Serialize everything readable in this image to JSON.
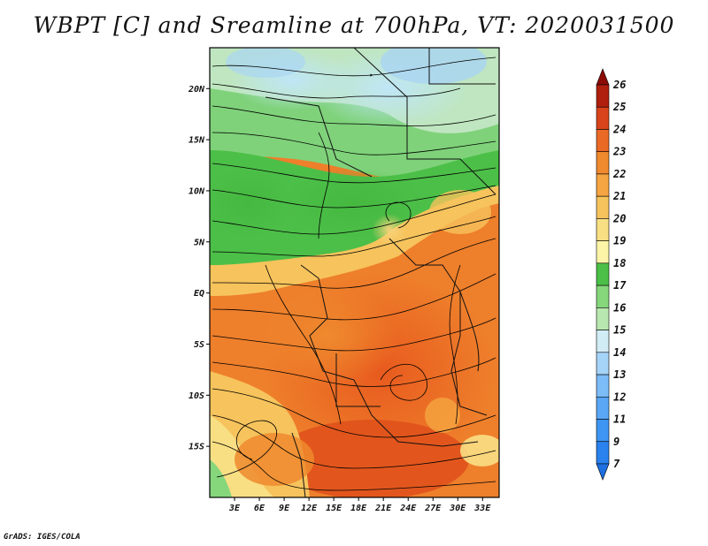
{
  "title": "WBPT [C] and Sreamline at 700hPa, VT: 2020031500",
  "credit": "GrADS: IGES/COLA",
  "lat_labels": [
    "20N",
    "15N",
    "10N",
    "5N",
    "EQ",
    "5S",
    "10S",
    "15S"
  ],
  "lat_values": [
    20,
    15,
    10,
    5,
    0,
    -5,
    -10,
    -15
  ],
  "lon_labels": [
    "3E",
    "6E",
    "9E",
    "12E",
    "15E",
    "18E",
    "21E",
    "24E",
    "27E",
    "30E",
    "33E"
  ],
  "lon_values": [
    3,
    6,
    9,
    12,
    15,
    18,
    21,
    24,
    27,
    30,
    33
  ],
  "map_extent": {
    "lon_min": 0,
    "lon_max": 35,
    "lat_min": -20,
    "lat_max": 24
  },
  "colorbar": {
    "labels": [
      "7",
      "9",
      "11",
      "12",
      "13",
      "14",
      "15",
      "16",
      "17",
      "18",
      "19",
      "20",
      "21",
      "22",
      "23",
      "24",
      "25",
      "26"
    ],
    "colors": [
      "#1e6fe0",
      "#2a82ee",
      "#3f95f2",
      "#5aa7f5",
      "#7cbcf7",
      "#a6d3f8",
      "#d2ecf6",
      "#b8e8b0",
      "#86d67c",
      "#4cbf48",
      "#fcf5a8",
      "#f9df84",
      "#f6c35c",
      "#f5a541",
      "#f08a2f",
      "#ea6a25",
      "#d9431b",
      "#b01e0d",
      "#8c0b06"
    ]
  }
}
